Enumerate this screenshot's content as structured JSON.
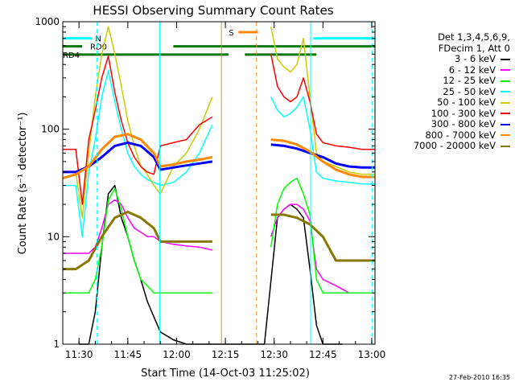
{
  "chart_data": {
    "type": "line",
    "title": "HESSI Observing Summary Count Rates",
    "xlabel": "Start Time (14-Oct-03 11:25:02)",
    "ylabel": "Count Rate (s⁻¹ detector⁻¹)",
    "y_scale": "log",
    "ylim": [
      1,
      1000
    ],
    "xlim_minutes_after_1125": [
      0,
      96
    ],
    "x_ticks": [
      "11:30",
      "11:45",
      "12:00",
      "12:15",
      "12:30",
      "12:45",
      "13:00"
    ],
    "y_ticks": [
      "1",
      "10",
      "100",
      "1000"
    ],
    "legend_header": [
      "Det 1,3,4,5,6,9,",
      "FDecim 1, Att 0"
    ],
    "legend_position": "right",
    "series": [
      {
        "name": "3 - 6 keV",
        "color": "#000000",
        "t": [
          5,
          8,
          10,
          12,
          14,
          16,
          18,
          20,
          22,
          24,
          26,
          28,
          30,
          34,
          38,
          42,
          46,
          50,
          54,
          58,
          62,
          66,
          68,
          70,
          72,
          74,
          76,
          78,
          80,
          82,
          84,
          86
        ],
        "y": [
          1,
          1,
          2,
          8,
          25,
          30,
          15,
          10,
          6,
          4,
          2.5,
          1.8,
          1.3,
          1.1,
          1,
          1,
          1,
          1,
          1,
          1,
          1,
          15,
          18,
          20,
          18,
          15,
          5,
          1.5,
          1,
          1,
          1,
          1
        ]
      },
      {
        "name": "6 - 12 keV",
        "color": "#ff00ff",
        "t": [
          0,
          8,
          10,
          12,
          14,
          16,
          18,
          20,
          22,
          24,
          26,
          28,
          30,
          34,
          38,
          42,
          46,
          50,
          54,
          58,
          62,
          64,
          66,
          68,
          70,
          72,
          74,
          76,
          78,
          80,
          84,
          88,
          92,
          96
        ],
        "y": [
          7,
          7,
          8,
          12,
          20,
          22,
          20,
          15,
          12,
          11,
          10,
          10,
          9,
          8.5,
          8.2,
          8,
          7.5,
          null,
          null,
          null,
          null,
          10,
          15,
          18,
          20,
          20,
          18,
          14,
          5,
          4,
          3.5,
          3,
          3,
          3
        ]
      },
      {
        "name": "12 - 25 keV",
        "color": "#00ff00",
        "t": [
          0,
          8,
          10,
          12,
          14,
          16,
          18,
          20,
          22,
          24,
          26,
          28,
          30,
          34,
          38,
          42,
          46,
          50,
          54,
          58,
          62,
          64,
          66,
          68,
          70,
          72,
          74,
          76,
          78,
          80,
          84,
          88,
          92,
          96
        ],
        "y": [
          3,
          3,
          4,
          8,
          22,
          28,
          18,
          10,
          6,
          4,
          3.5,
          3,
          3,
          3,
          3,
          3,
          3,
          null,
          null,
          null,
          null,
          8,
          20,
          28,
          32,
          35,
          25,
          16,
          4,
          3,
          3,
          3,
          3,
          3
        ]
      },
      {
        "name": "25 - 50 keV",
        "color": "#00ffff",
        "t": [
          0,
          4,
          6,
          8,
          10,
          12,
          14,
          16,
          18,
          20,
          22,
          24,
          26,
          28,
          30,
          34,
          38,
          42,
          46,
          50,
          54,
          58,
          62,
          64,
          66,
          68,
          70,
          72,
          74,
          76,
          78,
          80,
          84,
          88,
          92,
          96
        ],
        "y": [
          30,
          30,
          10,
          40,
          80,
          200,
          350,
          180,
          100,
          60,
          45,
          38,
          34,
          32,
          30,
          32,
          40,
          60,
          110,
          null,
          null,
          null,
          null,
          200,
          150,
          130,
          140,
          160,
          200,
          100,
          40,
          35,
          33,
          32,
          31,
          31
        ]
      },
      {
        "name": "50 - 100 keV",
        "color": "#cccc00",
        "t": [
          0,
          4,
          6,
          8,
          10,
          12,
          14,
          16,
          18,
          20,
          22,
          24,
          26,
          28,
          30,
          34,
          38,
          42,
          46,
          50,
          54,
          58,
          62,
          64,
          66,
          68,
          70,
          72,
          74,
          76,
          78,
          80,
          84,
          88,
          92,
          96
        ],
        "y": [
          40,
          40,
          15,
          60,
          200,
          500,
          900,
          500,
          250,
          120,
          70,
          45,
          38,
          30,
          25,
          45,
          60,
          100,
          200,
          null,
          null,
          null,
          null,
          900,
          450,
          380,
          340,
          400,
          700,
          200,
          60,
          50,
          45,
          40,
          38,
          38
        ]
      },
      {
        "name": "100 - 300 keV",
        "color": "#ff0000",
        "t": [
          0,
          4,
          6,
          8,
          10,
          12,
          14,
          16,
          18,
          20,
          22,
          24,
          26,
          28,
          30,
          34,
          38,
          42,
          46,
          50,
          54,
          58,
          62,
          64,
          66,
          68,
          70,
          72,
          74,
          76,
          78,
          80,
          84,
          88,
          92,
          96
        ],
        "y": [
          65,
          65,
          20,
          80,
          150,
          300,
          480,
          220,
          120,
          75,
          55,
          45,
          40,
          38,
          70,
          75,
          80,
          110,
          130,
          null,
          null,
          null,
          null,
          500,
          250,
          200,
          180,
          200,
          300,
          180,
          90,
          75,
          70,
          68,
          65,
          65
        ]
      },
      {
        "name": "300 - 800 keV",
        "color": "#0000ff",
        "t": [
          0,
          4,
          8,
          12,
          16,
          20,
          24,
          28,
          30,
          34,
          38,
          42,
          46,
          50,
          54,
          58,
          62,
          64,
          68,
          72,
          76,
          80,
          84,
          88,
          92,
          96
        ],
        "y": [
          40,
          40,
          45,
          55,
          70,
          75,
          70,
          55,
          42,
          44,
          46,
          48,
          50,
          null,
          null,
          null,
          null,
          72,
          70,
          66,
          60,
          55,
          48,
          45,
          44,
          44
        ]
      },
      {
        "name": "800 - 7000 keV",
        "color": "#ff8800",
        "t": [
          0,
          4,
          8,
          12,
          16,
          20,
          24,
          28,
          30,
          34,
          38,
          42,
          46,
          50,
          54,
          58,
          62,
          64,
          68,
          72,
          76,
          80,
          84,
          88,
          92,
          96
        ],
        "y": [
          35,
          38,
          45,
          65,
          85,
          90,
          80,
          60,
          45,
          47,
          50,
          52,
          55,
          null,
          null,
          null,
          null,
          80,
          78,
          72,
          62,
          50,
          42,
          38,
          36,
          36
        ]
      },
      {
        "name": "7000 - 20000 keV",
        "color": "#887700",
        "t": [
          0,
          4,
          8,
          12,
          16,
          20,
          24,
          28,
          30,
          34,
          38,
          42,
          46,
          50,
          54,
          58,
          62,
          64,
          68,
          72,
          76,
          80,
          84,
          88,
          92,
          96
        ],
        "y": [
          5,
          5,
          6,
          10,
          15,
          17,
          15,
          12,
          9,
          9,
          9,
          9,
          9,
          null,
          null,
          null,
          null,
          16,
          16,
          15,
          13,
          10,
          6,
          6,
          6,
          6
        ]
      }
    ],
    "flags": [
      {
        "label": "N",
        "color": "#00ffff",
        "level": 700,
        "segments": [
          [
            0,
            9
          ],
          [
            77,
            96
          ]
        ]
      },
      {
        "label": "RD0",
        "color": "#007700",
        "level": 590,
        "segments": [
          [
            0,
            6
          ],
          [
            34,
            96
          ]
        ]
      },
      {
        "label": "RD4",
        "color": "#007700",
        "level": 495,
        "segments": [
          [
            0,
            51
          ],
          [
            56,
            78
          ]
        ]
      },
      {
        "label": "S",
        "color": "#ff8800",
        "level": 800,
        "segments": [
          [
            54,
            60
          ]
        ]
      }
    ],
    "vertical_markers": [
      {
        "t": 10.5,
        "color": "#00ffff",
        "style": "dashed"
      },
      {
        "t": 29.8,
        "color": "#00ffff",
        "style": "solid"
      },
      {
        "t": 48.8,
        "color": "#ff8800",
        "style": "solid"
      },
      {
        "t": 59.6,
        "color": "#ff8800",
        "style": "dashed"
      },
      {
        "t": 76.2,
        "color": "#00ffff",
        "style": "solid"
      },
      {
        "t": 95.1,
        "color": "#00ffff",
        "style": "dashed"
      }
    ]
  },
  "footer": {
    "stamp": "27-Feb-2010 16:35"
  }
}
